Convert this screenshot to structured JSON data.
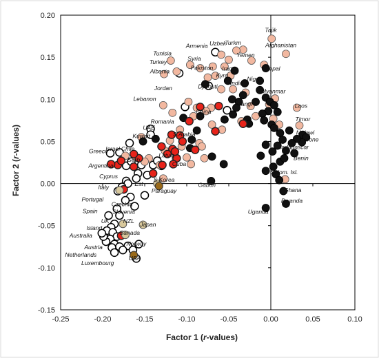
{
  "chart_data": {
    "type": "scatter",
    "title": "",
    "xlabel_main": "Factor 1 (",
    "xlabel_italic": "r",
    "xlabel_tail": "-values)",
    "ylabel_main": "Factor 2 (",
    "ylabel_italic": "r",
    "ylabel_tail": "-values)",
    "xlim": [
      -0.25,
      0.1
    ],
    "ylim": [
      -0.15,
      0.2
    ],
    "xticks": [
      -0.25,
      -0.2,
      -0.15,
      -0.1,
      -0.05,
      0,
      0.05,
      0.1
    ],
    "yticks": [
      -0.15,
      -0.1,
      -0.05,
      0,
      0.05,
      0.1,
      0.15,
      0.2
    ],
    "xtick_labels": [
      "-0.25",
      "-0.20",
      "-0.15",
      "-0.10",
      "-0.05",
      "0.00",
      "0.05",
      "0.10"
    ],
    "ytick_labels": [
      "-0.15",
      "-0.10",
      "-0.05",
      "0.00",
      "0.05",
      "0.10",
      "0.15",
      "0.20"
    ],
    "grid": false,
    "colors": {
      "salmon": "#f2b8a0",
      "red": "#e8231a",
      "black": "#111111",
      "open": "#ffffff",
      "tan": "#d8c89c",
      "olive": "#9a6a1a"
    },
    "labels": [
      {
        "text": "Tajik",
        "x": 0.0,
        "y": 0.18
      },
      {
        "text": "Afghanistan",
        "x": 0.012,
        "y": 0.162
      },
      {
        "text": "Uzbek",
        "x": -0.063,
        "y": 0.164
      },
      {
        "text": "Turkm",
        "x": -0.045,
        "y": 0.165
      },
      {
        "text": "Armenia",
        "x": -0.088,
        "y": 0.161
      },
      {
        "text": "Yemen",
        "x": -0.03,
        "y": 0.15
      },
      {
        "text": "Tunisia",
        "x": -0.129,
        "y": 0.152
      },
      {
        "text": "Syria",
        "x": -0.091,
        "y": 0.146
      },
      {
        "text": "Turkey",
        "x": -0.134,
        "y": 0.142
      },
      {
        "text": "Nepal",
        "x": 0.002,
        "y": 0.134
      },
      {
        "text": "Iraq",
        "x": -0.052,
        "y": 0.134
      },
      {
        "text": "Pakistan",
        "x": -0.082,
        "y": 0.135
      },
      {
        "text": "Albania",
        "x": -0.132,
        "y": 0.131
      },
      {
        "text": "Kyrg",
        "x": -0.058,
        "y": 0.126
      },
      {
        "text": "Niger",
        "x": -0.02,
        "y": 0.122
      },
      {
        "text": "Djibouti",
        "x": -0.075,
        "y": 0.113
      },
      {
        "text": "India",
        "x": -0.041,
        "y": 0.117
      },
      {
        "text": "Jordan",
        "x": -0.128,
        "y": 0.111
      },
      {
        "text": "Myanmar",
        "x": 0.003,
        "y": 0.107
      },
      {
        "text": "Lebanon",
        "x": -0.15,
        "y": 0.098
      },
      {
        "text": "Bangl",
        "x": -0.031,
        "y": 0.092
      },
      {
        "text": "Laos",
        "x": 0.036,
        "y": 0.09
      },
      {
        "text": "China",
        "x": -0.08,
        "y": 0.083
      },
      {
        "text": "Timor",
        "x": 0.038,
        "y": 0.074
      },
      {
        "text": "Romania",
        "x": -0.129,
        "y": 0.071
      },
      {
        "text": "Malawi",
        "x": 0.041,
        "y": 0.058
      },
      {
        "text": "UAE",
        "x": -0.145,
        "y": 0.064
      },
      {
        "text": "S.Arabia",
        "x": -0.103,
        "y": 0.056
      },
      {
        "text": "S. Leone",
        "x": 0.043,
        "y": 0.05
      },
      {
        "text": "Kuwait",
        "x": -0.154,
        "y": 0.054
      },
      {
        "text": "Madagascar",
        "x": 0.026,
        "y": 0.041
      },
      {
        "text": "Greece",
        "x": -0.205,
        "y": 0.036
      },
      {
        "text": "Israel",
        "x": -0.188,
        "y": 0.039
      },
      {
        "text": "Chile",
        "x": -0.17,
        "y": 0.039
      },
      {
        "text": "Latvia",
        "x": -0.124,
        "y": 0.031
      },
      {
        "text": "Benin",
        "x": 0.036,
        "y": 0.028
      },
      {
        "text": "Serb",
        "x": -0.163,
        "y": 0.026
      },
      {
        "text": "Cuba",
        "x": -0.109,
        "y": 0.021
      },
      {
        "text": "Argentina",
        "x": -0.202,
        "y": 0.019
      },
      {
        "text": "Solom. Isl.",
        "x": 0.016,
        "y": 0.011
      },
      {
        "text": "Cyprus",
        "x": -0.193,
        "y": 0.006
      },
      {
        "text": "S.Korea",
        "x": -0.127,
        "y": 0.002
      },
      {
        "text": "Est",
        "x": -0.157,
        "y": -0.003
      },
      {
        "text": "Gabon",
        "x": -0.076,
        "y": -0.004
      },
      {
        "text": "Italy",
        "x": -0.199,
        "y": -0.007
      },
      {
        "text": "Paraguay",
        "x": -0.127,
        "y": -0.011
      },
      {
        "text": "Ghana",
        "x": 0.026,
        "y": -0.01
      },
      {
        "text": "Portugal",
        "x": -0.212,
        "y": -0.021
      },
      {
        "text": "Czechia",
        "x": -0.177,
        "y": -0.027
      },
      {
        "text": "Rwanda",
        "x": 0.025,
        "y": -0.023
      },
      {
        "text": "Spain",
        "x": -0.215,
        "y": -0.035
      },
      {
        "text": "Slovenia",
        "x": -0.175,
        "y": -0.036
      },
      {
        "text": "Uganda",
        "x": -0.015,
        "y": -0.036
      },
      {
        "text": "UK",
        "x": -0.197,
        "y": -0.047
      },
      {
        "text": "NZL",
        "x": -0.169,
        "y": -0.047
      },
      {
        "text": "Japan",
        "x": -0.146,
        "y": -0.051
      },
      {
        "text": "Island",
        "x": -0.21,
        "y": -0.055
      },
      {
        "text": "Canada",
        "x": -0.168,
        "y": -0.061
      },
      {
        "text": "Australia",
        "x": -0.226,
        "y": -0.064
      },
      {
        "text": "Norway",
        "x": -0.16,
        "y": -0.074
      },
      {
        "text": "Austria",
        "x": -0.211,
        "y": -0.078
      },
      {
        "text": "Netherlands",
        "x": -0.226,
        "y": -0.087
      },
      {
        "text": "USA",
        "x": -0.162,
        "y": -0.091
      },
      {
        "text": "Luxembourg",
        "x": -0.206,
        "y": -0.097
      }
    ],
    "series": [
      {
        "style": "salmon",
        "points": [
          [
            0.001,
            0.172
          ],
          [
            0.018,
            0.154
          ],
          [
            -0.033,
            0.159
          ],
          [
            -0.041,
            0.158
          ],
          [
            -0.059,
            0.153
          ],
          [
            -0.05,
            0.147
          ],
          [
            -0.023,
            0.146
          ],
          [
            -0.119,
            0.146
          ],
          [
            -0.096,
            0.141
          ],
          [
            -0.008,
            0.141
          ],
          [
            -0.055,
            0.139
          ],
          [
            -0.069,
            0.139
          ],
          [
            -0.084,
            0.137
          ],
          [
            -0.048,
            0.128
          ],
          [
            -0.066,
            0.128
          ],
          [
            -0.075,
            0.126
          ],
          [
            -0.112,
            0.133
          ],
          [
            -0.127,
            0.13
          ],
          [
            -0.045,
            0.112
          ],
          [
            -0.059,
            0.112
          ],
          [
            -0.03,
            0.108
          ],
          [
            0.005,
            0.101
          ],
          [
            -0.002,
            0.094
          ],
          [
            0.031,
            0.09
          ],
          [
            -0.128,
            0.093
          ],
          [
            -0.098,
            0.097
          ],
          [
            -0.117,
            0.084
          ],
          [
            -0.071,
            0.09
          ],
          [
            -0.077,
            0.086
          ],
          [
            -0.088,
            0.09
          ],
          [
            -0.092,
            0.08
          ],
          [
            0.003,
            0.077
          ],
          [
            -0.024,
            0.092
          ],
          [
            -0.035,
            0.074
          ],
          [
            -0.058,
            0.064
          ],
          [
            -0.07,
            0.07
          ],
          [
            0.034,
            0.069
          ],
          [
            -0.108,
            0.064
          ],
          [
            -0.154,
            0.055
          ],
          [
            -0.12,
            0.051
          ],
          [
            -0.126,
            0.039
          ],
          [
            -0.106,
            0.044
          ],
          [
            -0.085,
            0.048
          ],
          [
            -0.079,
            0.03
          ],
          [
            -0.095,
            0.023
          ],
          [
            -0.173,
            0.033
          ],
          [
            -0.113,
            0.03
          ],
          [
            -0.145,
            0.03
          ],
          [
            -0.16,
            0.031
          ],
          [
            -0.15,
            0.026
          ],
          [
            -0.1,
            0.031
          ],
          [
            -0.132,
            0.022
          ],
          [
            -0.018,
            0.08
          ],
          [
            0.017,
            0.005
          ],
          [
            0.01,
            0.07
          ],
          [
            -0.082,
            0.044
          ],
          [
            -0.128,
            0.006
          ]
        ]
      },
      {
        "style": "red",
        "points": [
          [
            -0.084,
            0.091
          ],
          [
            -0.097,
            0.074
          ],
          [
            -0.118,
            0.058
          ],
          [
            -0.066,
            0.062
          ],
          [
            -0.033,
            0.071
          ],
          [
            -0.108,
            0.057
          ],
          [
            -0.105,
            0.05
          ],
          [
            -0.09,
            0.04
          ],
          [
            -0.13,
            0.044
          ],
          [
            -0.117,
            0.041
          ],
          [
            -0.123,
            0.035
          ],
          [
            -0.112,
            0.03
          ],
          [
            -0.129,
            0.022
          ],
          [
            -0.14,
            0.012
          ],
          [
            -0.163,
            0.02
          ],
          [
            -0.157,
            0.03
          ],
          [
            -0.182,
            0.022
          ],
          [
            -0.178,
            0.027
          ],
          [
            -0.19,
            0.023
          ],
          [
            -0.116,
            0.023
          ],
          [
            -0.163,
            0.035
          ],
          [
            -0.175,
            -0.007
          ],
          [
            -0.178,
            -0.062
          ],
          [
            -0.062,
            0.092
          ],
          [
            -0.114,
            0.038
          ]
        ]
      },
      {
        "style": "black",
        "points": [
          [
            -0.006,
            0.137
          ],
          [
            -0.043,
            0.134
          ],
          [
            -0.051,
            0.122
          ],
          [
            -0.031,
            0.119
          ],
          [
            -0.013,
            0.122
          ],
          [
            -0.013,
            0.111
          ],
          [
            -0.033,
            0.105
          ],
          [
            -0.038,
            0.097
          ],
          [
            -0.041,
            0.09
          ],
          [
            -0.018,
            0.097
          ],
          [
            -0.006,
            0.102
          ],
          [
            -0.001,
            0.097
          ],
          [
            0.004,
            0.093
          ],
          [
            0.008,
            0.085
          ],
          [
            -0.003,
            0.086
          ],
          [
            -0.01,
            0.083
          ],
          [
            -0.045,
            0.082
          ],
          [
            -0.055,
            0.076
          ],
          [
            -0.028,
            0.076
          ],
          [
            -0.026,
            0.071
          ],
          [
            -0.008,
            0.075
          ],
          [
            0.001,
            0.07
          ],
          [
            0.004,
            0.066
          ],
          [
            0.011,
            0.06
          ],
          [
            0.022,
            0.063
          ],
          [
            0.038,
            0.058
          ],
          [
            0.042,
            0.055
          ],
          [
            0.037,
            0.049
          ],
          [
            0.031,
            0.053
          ],
          [
            0.025,
            0.048
          ],
          [
            0.014,
            0.052
          ],
          [
            0.008,
            0.045
          ],
          [
            0.002,
            0.038
          ],
          [
            0.018,
            0.039
          ],
          [
            0.028,
            0.036
          ],
          [
            0.011,
            0.026
          ],
          [
            0.003,
            0.02
          ],
          [
            -0.006,
            0.046
          ],
          [
            -0.012,
            0.033
          ],
          [
            -0.006,
            0.015
          ],
          [
            0.006,
            0.011
          ],
          [
            0.01,
            0.004
          ],
          [
            0.015,
            -0.009
          ],
          [
            0.018,
            -0.024
          ],
          [
            -0.006,
            -0.029
          ],
          [
            -0.084,
            0.08
          ],
          [
            -0.104,
            0.078
          ],
          [
            -0.088,
            0.063
          ],
          [
            -0.094,
            0.052
          ],
          [
            -0.096,
            0.042
          ],
          [
            -0.07,
            0.032
          ],
          [
            -0.056,
            0.023
          ],
          [
            -0.071,
            0.003
          ],
          [
            -0.152,
            0.05
          ],
          [
            -0.137,
            0.053
          ],
          [
            -0.046,
            0.1
          ],
          [
            -0.078,
            0.118
          ],
          [
            0.016,
            0.03
          ]
        ]
      },
      {
        "style": "open",
        "points": [
          [
            -0.066,
            0.156
          ],
          [
            -0.109,
            0.131
          ],
          [
            -0.074,
            0.116
          ],
          [
            -0.102,
            0.091
          ],
          [
            -0.052,
            0.087
          ],
          [
            -0.143,
            0.065
          ],
          [
            -0.143,
            0.058
          ],
          [
            -0.168,
            0.048
          ],
          [
            -0.18,
            0.037
          ],
          [
            -0.191,
            0.036
          ],
          [
            -0.172,
            0.021
          ],
          [
            -0.166,
            0.026
          ],
          [
            -0.154,
            0.022
          ],
          [
            -0.14,
            0.022
          ],
          [
            -0.13,
            0.021
          ],
          [
            -0.135,
            0.027
          ],
          [
            -0.147,
            0.01
          ],
          [
            -0.158,
            0.012
          ],
          [
            -0.16,
            0.006
          ],
          [
            -0.172,
            0.003
          ],
          [
            -0.17,
            0.0
          ],
          [
            -0.177,
            -0.004
          ],
          [
            -0.182,
            -0.009
          ],
          [
            -0.167,
            -0.016
          ],
          [
            -0.173,
            -0.02
          ],
          [
            -0.162,
            -0.027
          ],
          [
            -0.183,
            -0.03
          ],
          [
            -0.18,
            -0.038
          ],
          [
            -0.193,
            -0.038
          ],
          [
            -0.186,
            -0.048
          ],
          [
            -0.19,
            -0.052
          ],
          [
            -0.195,
            -0.056
          ],
          [
            -0.188,
            -0.058
          ],
          [
            -0.183,
            -0.063
          ],
          [
            -0.191,
            -0.066
          ],
          [
            -0.196,
            -0.069
          ],
          [
            -0.186,
            -0.072
          ],
          [
            -0.18,
            -0.075
          ],
          [
            -0.189,
            -0.076
          ],
          [
            -0.17,
            -0.074
          ],
          [
            -0.176,
            -0.079
          ],
          [
            -0.186,
            -0.082
          ],
          [
            -0.164,
            -0.079
          ],
          [
            -0.16,
            -0.089
          ],
          [
            -0.157,
            -0.072
          ],
          [
            -0.15,
            -0.014
          ],
          [
            -0.199,
            -0.063
          ],
          [
            -0.201,
            -0.059
          ]
        ]
      },
      {
        "style": "tan",
        "points": [
          [
            -0.173,
            -0.061
          ],
          [
            -0.152,
            -0.049
          ],
          [
            -0.176,
            -0.048
          ],
          [
            -0.135,
            0.0
          ],
          [
            -0.18,
            -0.008
          ]
        ]
      },
      {
        "style": "olive",
        "points": [
          [
            -0.163,
            -0.085
          ],
          [
            -0.133,
            -0.003
          ]
        ]
      }
    ]
  }
}
